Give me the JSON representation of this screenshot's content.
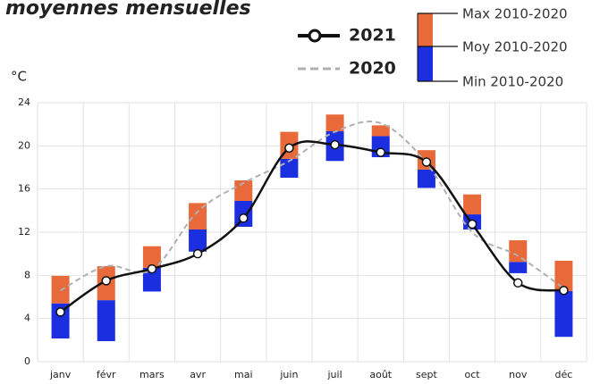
{
  "chart_data": {
    "type": "bar",
    "title": "moyennes mensuelles",
    "y_label": "°C",
    "categories": [
      "janv",
      "févr",
      "mars",
      "avr",
      "mai",
      "juin",
      "juil",
      "août",
      "sept",
      "oct",
      "nov",
      "déc"
    ],
    "ylim": [
      0,
      24
    ],
    "yticks": [
      0,
      4,
      8,
      12,
      16,
      20,
      24
    ],
    "grid": true,
    "series": [
      {
        "name": "Max 2010-2020",
        "color": "#e8693a",
        "kind": "max",
        "values": [
          7.95,
          8.85,
          10.7,
          14.7,
          16.8,
          21.3,
          22.9,
          21.9,
          19.6,
          15.5,
          11.25,
          9.35
        ]
      },
      {
        "name": "Moy 2010-2020",
        "kind": "moy",
        "values": [
          5.4,
          5.7,
          8.7,
          12.25,
          14.9,
          18.8,
          21.35,
          20.9,
          17.8,
          13.65,
          9.25,
          6.55
        ]
      },
      {
        "name": "Min 2010-2020",
        "color": "#1b2fe0",
        "kind": "min",
        "values": [
          2.15,
          1.9,
          6.5,
          10.2,
          12.5,
          17.05,
          18.6,
          18.95,
          16.1,
          12.25,
          8.2,
          2.3
        ]
      },
      {
        "name": "2021",
        "color": "#111111",
        "kind": "line",
        "markers": true,
        "values": [
          4.6,
          7.5,
          8.6,
          10.0,
          13.3,
          19.8,
          20.1,
          19.4,
          18.5,
          12.75,
          7.3,
          6.6
        ]
      },
      {
        "name": "2020",
        "color": "#b0b0b0",
        "kind": "line",
        "dashed": true,
        "values": [
          6.6,
          8.85,
          8.5,
          13.9,
          16.55,
          18.6,
          21.3,
          22.1,
          18.4,
          12.0,
          9.8,
          6.8
        ]
      }
    ]
  }
}
